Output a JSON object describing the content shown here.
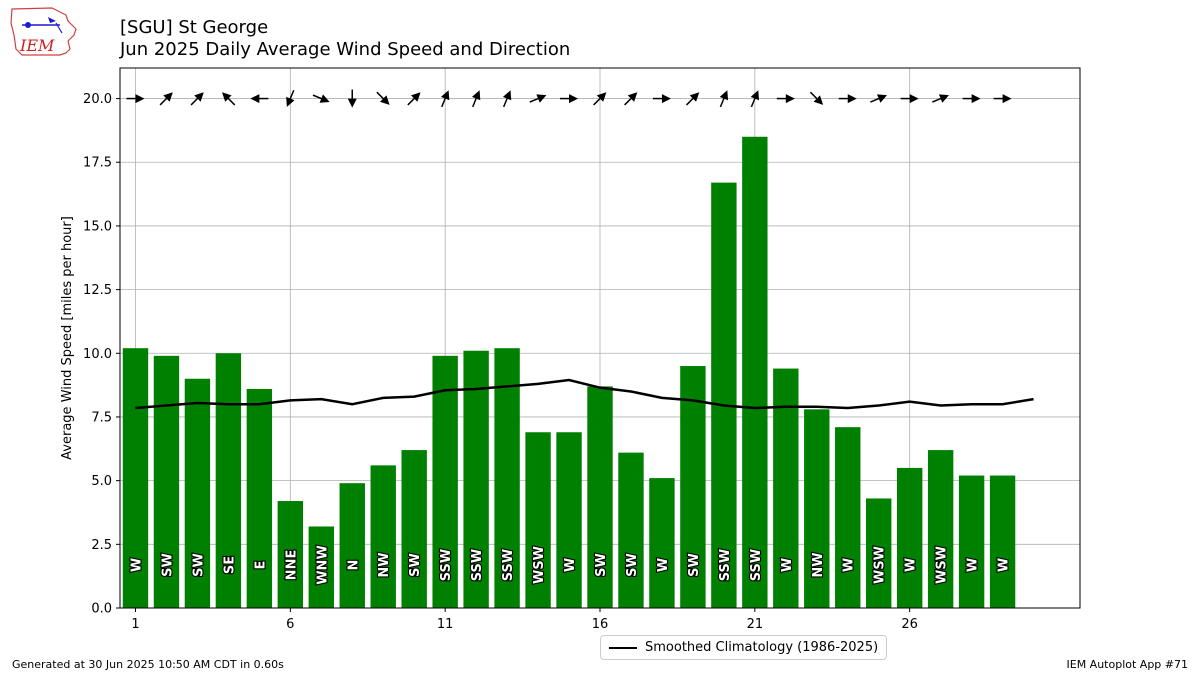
{
  "header": {
    "title_line1": "[SGU] St George",
    "title_line2": "Jun 2025 Daily Average Wind Speed and Direction",
    "logo_text": "IEM"
  },
  "footer": {
    "left": "Generated at 30 Jun 2025 10:50 AM CDT in 0.60s",
    "right": "IEM Autoplot App #71"
  },
  "legend": {
    "label": "Smoothed Climatology (1986-2025)"
  },
  "colors": {
    "bar": "#008000",
    "line": "#000000",
    "grid": "#b0b0b0",
    "label_text": "#ffffff"
  },
  "chart_data": {
    "type": "bar",
    "ylabel": "Average Wind Speed [miles per hour]",
    "xlabel": "",
    "xlim": [
      0.5,
      31.5
    ],
    "ylim": [
      0,
      21.2
    ],
    "xticks": [
      1,
      6,
      11,
      16,
      21,
      26
    ],
    "yticks": [
      "0.0",
      "2.5",
      "5.0",
      "7.5",
      "10.0",
      "12.5",
      "15.0",
      "17.5",
      "20.0"
    ],
    "grid": true,
    "legend_position": "bottom-center",
    "days": [
      1,
      2,
      3,
      4,
      5,
      6,
      7,
      8,
      9,
      10,
      11,
      12,
      13,
      14,
      15,
      16,
      17,
      18,
      19,
      20,
      21,
      22,
      23,
      24,
      25,
      26,
      27,
      28,
      29
    ],
    "speed": [
      10.2,
      9.9,
      9.0,
      10.0,
      8.6,
      4.2,
      3.2,
      4.9,
      5.6,
      6.2,
      9.9,
      10.1,
      10.2,
      6.9,
      6.9,
      8.7,
      6.1,
      5.1,
      9.5,
      16.7,
      18.5,
      9.4,
      7.8,
      7.1,
      4.3,
      5.5,
      6.2,
      5.2,
      5.2
    ],
    "direction": [
      "W",
      "SW",
      "SW",
      "SE",
      "E",
      "NNE",
      "WNW",
      "N",
      "NW",
      "SW",
      "SSW",
      "SSW",
      "SSW",
      "WSW",
      "W",
      "SW",
      "SW",
      "W",
      "SW",
      "SSW",
      "SSW",
      "W",
      "NW",
      "W",
      "WSW",
      "W",
      "WSW",
      "W",
      "W"
    ],
    "climatology": {
      "name": "Smoothed Climatology (1986-2025)",
      "days": [
        1,
        2,
        3,
        4,
        5,
        6,
        7,
        8,
        9,
        10,
        11,
        12,
        13,
        14,
        15,
        16,
        17,
        18,
        19,
        20,
        21,
        22,
        23,
        24,
        25,
        26,
        27,
        28,
        29,
        30
      ],
      "values": [
        7.85,
        7.95,
        8.05,
        8.0,
        8.0,
        8.15,
        8.2,
        8.0,
        8.25,
        8.3,
        8.55,
        8.6,
        8.7,
        8.8,
        8.95,
        8.65,
        8.5,
        8.25,
        8.15,
        7.95,
        7.85,
        7.9,
        7.9,
        7.85,
        7.95,
        8.1,
        7.95,
        8.0,
        8.0,
        8.2
      ]
    }
  }
}
